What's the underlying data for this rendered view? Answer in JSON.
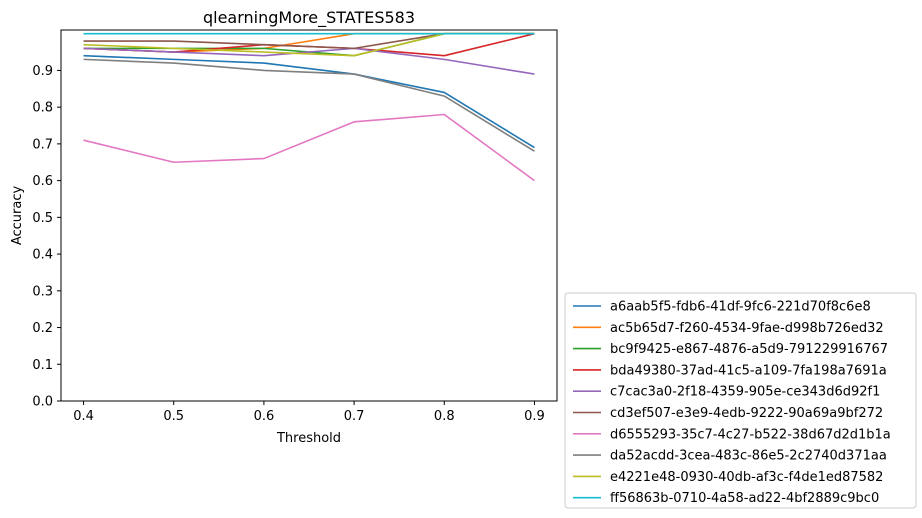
{
  "chart_data": {
    "type": "line",
    "title": "qlearningMore_STATES583",
    "xlabel": "Threshold",
    "ylabel": "Accuracy",
    "x": [
      0.4,
      0.5,
      0.6,
      0.7,
      0.8,
      0.9
    ],
    "x_ticks": [
      "0.4",
      "0.5",
      "0.6",
      "0.7",
      "0.8",
      "0.9"
    ],
    "y_ticks": [
      "0.0",
      "0.1",
      "0.2",
      "0.3",
      "0.4",
      "0.5",
      "0.6",
      "0.7",
      "0.8",
      "0.9"
    ],
    "xlim": [
      0.375,
      0.925
    ],
    "ylim": [
      0.0,
      1.01
    ],
    "grid": false,
    "legend_position": "outside-lower-right",
    "series": [
      {
        "name": "a6aab5f5-fdb6-41df-9fc6-221d70f8c6e8",
        "color": "#1f77b4",
        "values": [
          0.94,
          0.93,
          0.92,
          0.89,
          0.84,
          0.69
        ]
      },
      {
        "name": "ac5b65d7-f260-4534-9fae-d998b726ed32",
        "color": "#ff7f0e",
        "values": [
          0.96,
          0.95,
          0.96,
          1.0,
          1.0,
          1.0
        ]
      },
      {
        "name": "bc9f9425-e867-4876-a5d9-791229916767",
        "color": "#2ca02c",
        "values": [
          0.96,
          0.96,
          0.96,
          0.94,
          1.0,
          1.0
        ]
      },
      {
        "name": "bda49380-37ad-41c5-a109-7fa198a7691a",
        "color": "#d62728",
        "values": [
          0.96,
          0.95,
          0.97,
          0.96,
          0.94,
          1.0
        ]
      },
      {
        "name": "c7cac3a0-2f18-4359-905e-ce343d6d92f1",
        "color": "#9467bd",
        "values": [
          0.96,
          0.95,
          0.94,
          0.96,
          0.93,
          0.89
        ]
      },
      {
        "name": "cd3ef507-e3e9-4edb-9222-90a69a9bf272",
        "color": "#8c564b",
        "values": [
          0.98,
          0.98,
          0.97,
          0.96,
          1.0,
          1.0
        ]
      },
      {
        "name": "d6555293-35c7-4c27-b522-38d67d2d1b1a",
        "color": "#e377c2",
        "values": [
          0.71,
          0.65,
          0.66,
          0.76,
          0.78,
          0.6
        ]
      },
      {
        "name": "da52acdd-3cea-483c-86e5-2c2740d371aa",
        "color": "#7f7f7f",
        "values": [
          0.93,
          0.92,
          0.9,
          0.89,
          0.83,
          0.68
        ]
      },
      {
        "name": "e4221e48-0930-40db-af3c-f4de1ed87582",
        "color": "#bcbd22",
        "values": [
          0.97,
          0.96,
          0.95,
          0.94,
          1.0,
          1.0
        ]
      },
      {
        "name": "ff56863b-0710-4a58-ad22-4bf2889c9bc0",
        "color": "#17becf",
        "values": [
          1.0,
          1.0,
          1.0,
          1.0,
          1.0,
          1.0
        ]
      }
    ]
  }
}
